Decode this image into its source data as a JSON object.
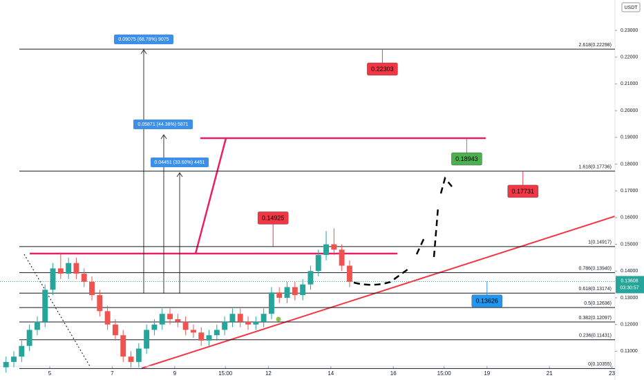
{
  "chart_data": {
    "type": "candlestick",
    "currency": "USDT",
    "x": [
      3.6,
      3.85,
      4.1,
      4.35,
      4.6,
      4.85,
      5.1,
      5.35,
      5.6,
      5.85,
      6.1,
      6.35,
      6.6,
      6.85,
      7.1,
      7.35,
      7.6,
      7.85,
      8.1,
      8.35,
      8.6,
      8.85,
      9.1,
      9.35,
      9.6,
      9.85,
      10.1,
      10.35,
      10.6,
      10.85,
      11.1,
      11.35,
      11.6,
      11.85,
      12.1,
      12.35,
      12.6,
      12.85,
      13.1,
      13.35,
      13.6,
      13.85,
      14.1,
      14.35,
      14.6
    ],
    "open": [
      0.104,
      0.106,
      0.108,
      0.112,
      0.118,
      0.121,
      0.133,
      0.141,
      0.139,
      0.143,
      0.139,
      0.136,
      0.131,
      0.125,
      0.12,
      0.116,
      0.108,
      0.106,
      0.111,
      0.118,
      0.12,
      0.124,
      0.122,
      0.121,
      0.118,
      0.117,
      0.114,
      0.116,
      0.118,
      0.121,
      0.124,
      0.121,
      0.12,
      0.121,
      0.124,
      0.132,
      0.13,
      0.134,
      0.131,
      0.135,
      0.14,
      0.146,
      0.15,
      0.148,
      0.142
    ],
    "high": [
      0.108,
      0.11,
      0.114,
      0.12,
      0.123,
      0.135,
      0.143,
      0.147,
      0.145,
      0.145,
      0.141,
      0.138,
      0.133,
      0.127,
      0.122,
      0.118,
      0.11,
      0.113,
      0.12,
      0.122,
      0.126,
      0.126,
      0.124,
      0.123,
      0.12,
      0.119,
      0.118,
      0.12,
      0.123,
      0.126,
      0.126,
      0.123,
      0.123,
      0.126,
      0.134,
      0.134,
      0.136,
      0.136,
      0.137,
      0.142,
      0.148,
      0.155,
      0.156,
      0.15,
      0.144
    ],
    "low": [
      0.102,
      0.104,
      0.106,
      0.11,
      0.116,
      0.119,
      0.131,
      0.137,
      0.137,
      0.137,
      0.134,
      0.129,
      0.123,
      0.118,
      0.114,
      0.106,
      0.104,
      0.104,
      0.109,
      0.116,
      0.118,
      0.12,
      0.119,
      0.116,
      0.115,
      0.112,
      0.112,
      0.114,
      0.116,
      0.119,
      0.119,
      0.118,
      0.118,
      0.119,
      0.122,
      0.128,
      0.128,
      0.129,
      0.129,
      0.133,
      0.138,
      0.144,
      0.146,
      0.14,
      0.134
    ],
    "close": [
      0.106,
      0.108,
      0.112,
      0.118,
      0.121,
      0.133,
      0.141,
      0.139,
      0.143,
      0.139,
      0.136,
      0.131,
      0.125,
      0.12,
      0.116,
      0.108,
      0.106,
      0.111,
      0.118,
      0.12,
      0.124,
      0.122,
      0.121,
      0.118,
      0.117,
      0.114,
      0.116,
      0.118,
      0.121,
      0.124,
      0.121,
      0.12,
      0.121,
      0.124,
      0.132,
      0.13,
      0.134,
      0.131,
      0.135,
      0.14,
      0.146,
      0.15,
      0.148,
      0.142,
      0.136
    ],
    "up_color": "#26a69a",
    "down_color": "#ef5350",
    "xlim": [
      3.407,
      23.097
    ],
    "xticks": [
      5,
      7,
      9,
      {
        "value": 10.625,
        "label": "15:00"
      },
      12,
      14,
      16,
      {
        "value": 17.625,
        "label": "15:00"
      },
      19,
      21,
      23
    ],
    "ylim": [
      0.10442,
      0.24137
    ],
    "yticks": [
      {
        "value": 0.23,
        "label": "0.23000"
      },
      {
        "value": 0.22,
        "label": "0.22000"
      },
      {
        "value": 0.21,
        "label": "0.21000"
      },
      {
        "value": 0.2,
        "label": "0.20000"
      },
      {
        "value": 0.19,
        "label": "0.19000"
      },
      {
        "value": 0.18,
        "label": "0.18000"
      },
      {
        "value": 0.17,
        "label": "0.17000"
      },
      {
        "value": 0.16,
        "label": "0.16000"
      },
      {
        "value": 0.15,
        "label": "0.15000"
      },
      {
        "value": 0.14,
        "label": "0.14000"
      },
      {
        "value": 0.13,
        "label": "0.13000"
      },
      {
        "value": 0.12,
        "label": "0.12000"
      },
      {
        "value": 0.11,
        "label": "0.11000"
      }
    ],
    "last_price": 0.13608,
    "countdown": "03:30:57",
    "fib_levels": [
      {
        "label": "2.618(0.22298)",
        "value": 0.22298
      },
      {
        "label": "1.618(0.17736)",
        "value": 0.17736
      },
      {
        "label": "1(0.14917)",
        "value": 0.14917
      },
      {
        "label": "0.786(0.13940)",
        "value": 0.1394
      },
      {
        "label": "0.618(0.13174)",
        "value": 0.13174
      },
      {
        "label": "0.5(0.12636)",
        "value": 0.12636
      },
      {
        "label": "0.382(0.12097)",
        "value": 0.12097
      },
      {
        "label": "0.236(0.11431)",
        "value": 0.11431
      },
      {
        "label": "0(0.10355)",
        "value": 0.10355
      }
    ],
    "price_labels": [
      {
        "value": 0.22303,
        "color": "#f23645",
        "x": 15.65
      },
      {
        "value": 0.18943,
        "color": "#4caf50",
        "x": 18.35
      },
      {
        "value": 0.17731,
        "color": "#f23645",
        "x": 20.15
      },
      {
        "value": 0.14925,
        "color": "#f23645",
        "x": 12.15
      },
      {
        "value": 0.13626,
        "color": "#2196f3",
        "x": 19.0
      }
    ],
    "measurements": [
      "0.09075 (68.78%) 9075",
      "0.05871 (44.38%) 5871",
      "0.04451 (33.60%) 4451"
    ]
  }
}
